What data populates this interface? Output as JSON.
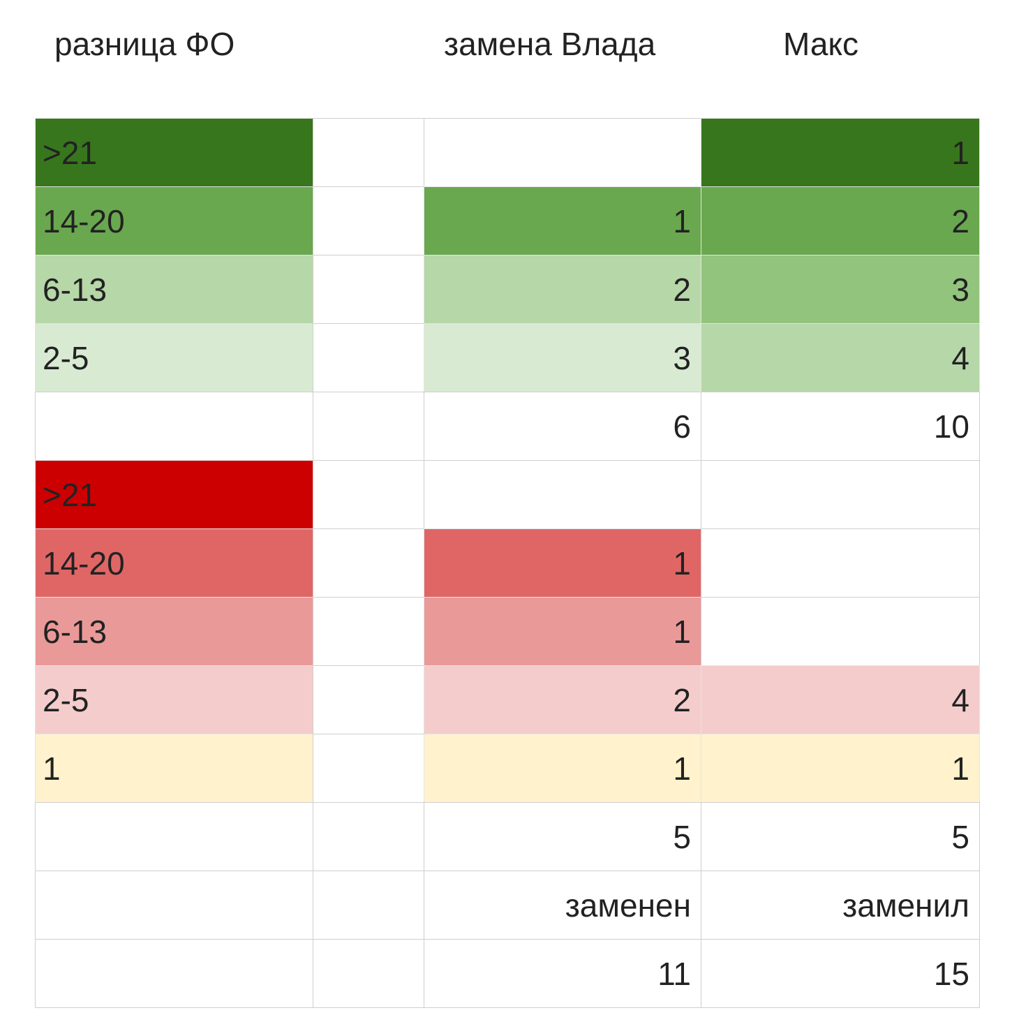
{
  "header": [
    "разница ФО",
    "замена Влада",
    "Макс"
  ],
  "table": {
    "rows": [
      [
        ">21",
        null,
        null,
        1
      ],
      [
        "14-20",
        null,
        1,
        2
      ],
      [
        "6-13",
        null,
        2,
        3
      ],
      [
        "2-5",
        null,
        3,
        4
      ],
      [
        null,
        null,
        6,
        10
      ],
      [
        ">21",
        null,
        null,
        null
      ],
      [
        "14-20",
        null,
        1,
        null
      ],
      [
        "6-13",
        null,
        1,
        null
      ],
      [
        "2-5",
        null,
        2,
        4
      ],
      [
        "1",
        null,
        1,
        1
      ],
      [
        null,
        null,
        5,
        5
      ],
      [
        null,
        null,
        "заменен",
        "заменил"
      ],
      [
        null,
        null,
        11,
        15
      ]
    ],
    "colors": [
      [
        "#38761d",
        null,
        null,
        "#38761d"
      ],
      [
        "#6aa84f",
        null,
        "#6aa84f",
        "#6aa84f"
      ],
      [
        "#b6d7a8",
        null,
        "#b6d7a8",
        "#93c47d"
      ],
      [
        "#d9ead3",
        null,
        "#d9ead3",
        "#b6d7a8"
      ],
      [
        null,
        null,
        null,
        null
      ],
      [
        "#cc0000",
        null,
        null,
        null
      ],
      [
        "#e06666",
        null,
        "#e06666",
        null
      ],
      [
        "#ea9999",
        null,
        "#ea9999",
        null
      ],
      [
        "#f4cccc",
        null,
        "#f4cccc",
        "#f4cccc"
      ],
      [
        "#fff2cc",
        null,
        "#fff2cc",
        "#fff2cc"
      ],
      [
        null,
        null,
        null,
        null
      ],
      [
        null,
        null,
        null,
        null
      ],
      [
        null,
        null,
        null,
        null
      ]
    ]
  }
}
